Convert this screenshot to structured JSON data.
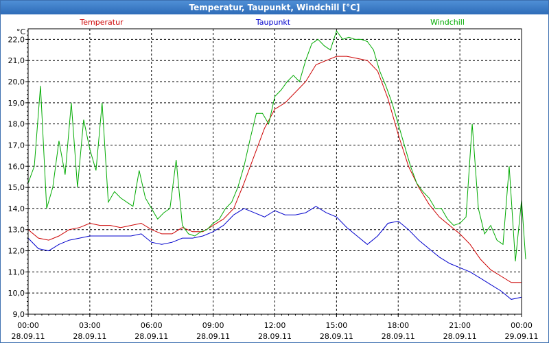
{
  "window": {
    "title": "Temperatur, Taupunkt, Windchill [°C]"
  },
  "chart_data": {
    "type": "line",
    "title": "Temperatur, Taupunkt, Windchill [°C]",
    "ylabel": "°C",
    "xlabel": "",
    "ylim": [
      9.0,
      22.5
    ],
    "yticks": [
      9.0,
      10.0,
      11.0,
      12.0,
      13.0,
      14.0,
      15.0,
      16.0,
      17.0,
      18.0,
      19.0,
      20.0,
      21.0,
      22.0
    ],
    "ytick_labels": [
      "9,0",
      "10,0",
      "11,0",
      "12,0",
      "13,0",
      "14,0",
      "15,0",
      "16,0",
      "17,0",
      "18,0",
      "19,0",
      "20,0",
      "21,0",
      "22,0"
    ],
    "xlim_hours": [
      0,
      24
    ],
    "xticks": [
      {
        "time": "00:00",
        "date": "28.09.11"
      },
      {
        "time": "03:00",
        "date": "28.09.11"
      },
      {
        "time": "06:00",
        "date": "28.09.11"
      },
      {
        "time": "09:00",
        "date": "28.09.11"
      },
      {
        "time": "12:00",
        "date": "28.09.11"
      },
      {
        "time": "15:00",
        "date": "28.09.11"
      },
      {
        "time": "18:00",
        "date": "28.09.11"
      },
      {
        "time": "21:00",
        "date": "28.09.11"
      },
      {
        "time": "00:00",
        "date": "29.09.11"
      }
    ],
    "grid": true,
    "legend_position": "top",
    "series": [
      {
        "name": "Temperatur",
        "color": "#cc0000",
        "points": [
          [
            0,
            13.0
          ],
          [
            0.5,
            12.6
          ],
          [
            1,
            12.5
          ],
          [
            1.5,
            12.7
          ],
          [
            2,
            13.0
          ],
          [
            2.5,
            13.1
          ],
          [
            3,
            13.3
          ],
          [
            3.5,
            13.2
          ],
          [
            4,
            13.2
          ],
          [
            4.5,
            13.1
          ],
          [
            5,
            13.2
          ],
          [
            5.5,
            13.3
          ],
          [
            6,
            13.0
          ],
          [
            6.5,
            12.8
          ],
          [
            7,
            12.8
          ],
          [
            7.5,
            13.1
          ],
          [
            8,
            12.9
          ],
          [
            8.5,
            12.9
          ],
          [
            9,
            13.2
          ],
          [
            9.5,
            13.5
          ],
          [
            10,
            14.0
          ],
          [
            10.5,
            15.2
          ],
          [
            11,
            16.5
          ],
          [
            11.5,
            17.8
          ],
          [
            12,
            18.7
          ],
          [
            12.5,
            19.0
          ],
          [
            13,
            19.5
          ],
          [
            13.5,
            20.0
          ],
          [
            14,
            20.8
          ],
          [
            14.5,
            21.0
          ],
          [
            15,
            21.2
          ],
          [
            15.5,
            21.2
          ],
          [
            16,
            21.1
          ],
          [
            16.5,
            21.0
          ],
          [
            17,
            20.5
          ],
          [
            17.5,
            19.2
          ],
          [
            18,
            17.5
          ],
          [
            18.5,
            16.0
          ],
          [
            19,
            15.0
          ],
          [
            19.5,
            14.2
          ],
          [
            20,
            13.6
          ],
          [
            20.5,
            13.2
          ],
          [
            21,
            12.8
          ],
          [
            21.5,
            12.3
          ],
          [
            22,
            11.6
          ],
          [
            22.5,
            11.1
          ],
          [
            23,
            10.8
          ],
          [
            23.5,
            10.5
          ],
          [
            24,
            10.5
          ]
        ]
      },
      {
        "name": "Taupunkt",
        "color": "#0000cc",
        "points": [
          [
            0,
            12.6
          ],
          [
            0.5,
            12.1
          ],
          [
            1,
            12.0
          ],
          [
            1.5,
            12.3
          ],
          [
            2,
            12.5
          ],
          [
            2.5,
            12.6
          ],
          [
            3,
            12.7
          ],
          [
            3.5,
            12.7
          ],
          [
            4,
            12.7
          ],
          [
            4.5,
            12.7
          ],
          [
            5,
            12.7
          ],
          [
            5.5,
            12.8
          ],
          [
            6,
            12.4
          ],
          [
            6.5,
            12.3
          ],
          [
            7,
            12.4
          ],
          [
            7.5,
            12.6
          ],
          [
            8,
            12.6
          ],
          [
            8.5,
            12.7
          ],
          [
            9,
            12.9
          ],
          [
            9.5,
            13.2
          ],
          [
            10,
            13.7
          ],
          [
            10.5,
            14.0
          ],
          [
            11,
            13.8
          ],
          [
            11.5,
            13.6
          ],
          [
            12,
            13.9
          ],
          [
            12.5,
            13.7
          ],
          [
            13,
            13.7
          ],
          [
            13.5,
            13.8
          ],
          [
            14,
            14.1
          ],
          [
            14.5,
            13.8
          ],
          [
            15,
            13.6
          ],
          [
            15.5,
            13.1
          ],
          [
            16,
            12.7
          ],
          [
            16.5,
            12.3
          ],
          [
            17,
            12.7
          ],
          [
            17.5,
            13.3
          ],
          [
            18,
            13.4
          ],
          [
            18.5,
            13.0
          ],
          [
            19,
            12.5
          ],
          [
            19.5,
            12.1
          ],
          [
            20,
            11.7
          ],
          [
            20.5,
            11.4
          ],
          [
            21,
            11.2
          ],
          [
            21.5,
            11.0
          ],
          [
            22,
            10.7
          ],
          [
            22.5,
            10.4
          ],
          [
            23,
            10.1
          ],
          [
            23.5,
            9.7
          ],
          [
            24,
            9.8
          ]
        ]
      },
      {
        "name": "Windchill",
        "color": "#00aa00",
        "points": [
          [
            0,
            15.2
          ],
          [
            0.3,
            16.0
          ],
          [
            0.6,
            19.8
          ],
          [
            0.9,
            14.0
          ],
          [
            1.2,
            15.0
          ],
          [
            1.5,
            17.2
          ],
          [
            1.8,
            15.6
          ],
          [
            2.1,
            19.0
          ],
          [
            2.4,
            15.0
          ],
          [
            2.7,
            18.2
          ],
          [
            3.0,
            16.8
          ],
          [
            3.3,
            15.8
          ],
          [
            3.6,
            19.0
          ],
          [
            3.9,
            14.3
          ],
          [
            4.2,
            14.8
          ],
          [
            4.5,
            14.5
          ],
          [
            4.8,
            14.3
          ],
          [
            5.1,
            14.1
          ],
          [
            5.4,
            15.8
          ],
          [
            5.7,
            14.5
          ],
          [
            6.0,
            14.0
          ],
          [
            6.3,
            13.5
          ],
          [
            6.6,
            13.8
          ],
          [
            6.9,
            14.0
          ],
          [
            7.2,
            16.3
          ],
          [
            7.5,
            13.2
          ],
          [
            7.8,
            12.8
          ],
          [
            8.1,
            12.7
          ],
          [
            8.4,
            12.9
          ],
          [
            8.7,
            13.0
          ],
          [
            9.0,
            13.3
          ],
          [
            9.3,
            13.5
          ],
          [
            9.6,
            14.0
          ],
          [
            9.9,
            14.3
          ],
          [
            10.2,
            15.0
          ],
          [
            10.5,
            16.0
          ],
          [
            10.8,
            17.3
          ],
          [
            11.1,
            18.5
          ],
          [
            11.4,
            18.5
          ],
          [
            11.7,
            18.0
          ],
          [
            12.0,
            19.3
          ],
          [
            12.3,
            19.6
          ],
          [
            12.6,
            20.0
          ],
          [
            12.9,
            20.3
          ],
          [
            13.2,
            20.0
          ],
          [
            13.5,
            21.0
          ],
          [
            13.8,
            21.8
          ],
          [
            14.1,
            22.0
          ],
          [
            14.4,
            21.7
          ],
          [
            14.7,
            21.5
          ],
          [
            15.0,
            22.4
          ],
          [
            15.3,
            22.0
          ],
          [
            15.6,
            22.1
          ],
          [
            15.9,
            22.0
          ],
          [
            16.2,
            22.0
          ],
          [
            16.5,
            21.9
          ],
          [
            16.8,
            21.5
          ],
          [
            17.1,
            20.5
          ],
          [
            17.4,
            19.8
          ],
          [
            17.7,
            19.0
          ],
          [
            18.0,
            18.0
          ],
          [
            18.3,
            17.0
          ],
          [
            18.6,
            16.0
          ],
          [
            18.9,
            15.2
          ],
          [
            19.2,
            14.8
          ],
          [
            19.5,
            14.5
          ],
          [
            19.8,
            14.0
          ],
          [
            20.1,
            14.0
          ],
          [
            20.4,
            13.5
          ],
          [
            20.7,
            13.2
          ],
          [
            21.0,
            13.3
          ],
          [
            21.3,
            13.6
          ],
          [
            21.6,
            18.0
          ],
          [
            21.9,
            14.0
          ],
          [
            22.2,
            12.8
          ],
          [
            22.5,
            13.2
          ],
          [
            22.8,
            12.5
          ],
          [
            23.1,
            12.3
          ],
          [
            23.4,
            16.0
          ],
          [
            23.7,
            11.5
          ],
          [
            24.0,
            14.4
          ],
          [
            24.2,
            11.6
          ]
        ]
      }
    ]
  }
}
